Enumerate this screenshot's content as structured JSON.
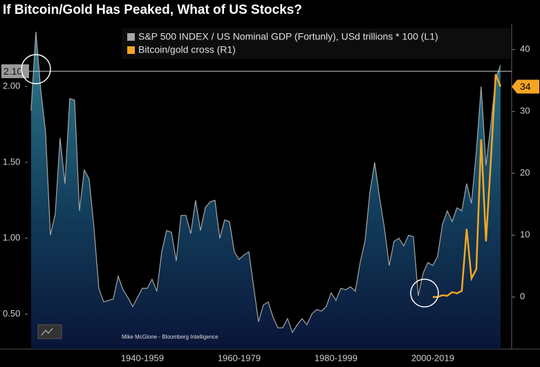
{
  "chart_data": {
    "type": "line",
    "title": "If Bitcoin/Gold Has Peaked, What of US Stocks?",
    "annotation": "Mike McGlone - Bloomberg Intelligence",
    "reference_line": {
      "value": 2.1,
      "label": "2.10"
    },
    "x": [
      1927,
      1928,
      1929,
      1930,
      1931,
      1932,
      1933,
      1934,
      1935,
      1936,
      1937,
      1938,
      1939,
      1940,
      1941,
      1942,
      1943,
      1944,
      1945,
      1946,
      1947,
      1948,
      1949,
      1950,
      1951,
      1952,
      1953,
      1954,
      1955,
      1956,
      1957,
      1958,
      1959,
      1960,
      1961,
      1962,
      1963,
      1964,
      1965,
      1966,
      1967,
      1968,
      1969,
      1970,
      1971,
      1972,
      1973,
      1974,
      1975,
      1976,
      1977,
      1978,
      1979,
      1980,
      1981,
      1982,
      1983,
      1984,
      1985,
      1986,
      1987,
      1988,
      1989,
      1990,
      1991,
      1992,
      1993,
      1994,
      1995,
      1996,
      1997,
      1998,
      1999,
      2000,
      2001,
      2002,
      2003,
      2004,
      2005,
      2006,
      2007,
      2008,
      2009,
      2010,
      2011,
      2012,
      2013,
      2014,
      2015,
      2016,
      2017,
      2018,
      2019,
      2020,
      2021,
      2022,
      2023,
      2024
    ],
    "series": [
      {
        "name": "S&P 500 INDEX / US Nominal GDP (Fortunly), USd trillions * 100 (L1)",
        "color": "#a6a6a6",
        "values": [
          1.84,
          2.36,
          1.98,
          1.7,
          1.02,
          1.16,
          1.66,
          1.36,
          1.92,
          1.91,
          1.18,
          1.45,
          1.39,
          1.07,
          0.67,
          0.58,
          0.59,
          0.6,
          0.75,
          0.66,
          0.61,
          0.55,
          0.61,
          0.67,
          0.67,
          0.73,
          0.65,
          0.91,
          1.05,
          1.04,
          0.85,
          1.15,
          1.15,
          1.03,
          1.25,
          1.05,
          1.2,
          1.24,
          1.25,
          1.0,
          1.12,
          1.11,
          0.91,
          0.86,
          0.89,
          0.91,
          0.68,
          0.45,
          0.56,
          0.58,
          0.48,
          0.41,
          0.41,
          0.47,
          0.38,
          0.43,
          0.47,
          0.43,
          0.5,
          0.53,
          0.52,
          0.55,
          0.64,
          0.59,
          0.67,
          0.66,
          0.68,
          0.65,
          0.84,
          0.98,
          1.3,
          1.5,
          1.27,
          1.07,
          0.82,
          0.98,
          1.0,
          0.95,
          1.02,
          1.01,
          0.62,
          0.77,
          0.84,
          0.82,
          0.88,
          1.09,
          1.18,
          1.11,
          1.2,
          1.18,
          1.36,
          1.23,
          1.57,
          2.0,
          1.48,
          1.75,
          2.05,
          2.14
        ]
      },
      {
        "name": "Bitcoin/gold cross (R1)",
        "color": "#f5a623",
        "axis": "y2",
        "x": [
          2010,
          2011,
          2012,
          2013,
          2014,
          2015,
          2016,
          2017,
          2018,
          2019,
          2020,
          2021,
          2022,
          2023,
          2024
        ],
        "values": [
          0,
          0,
          0.3,
          0.2,
          0.8,
          0.6,
          1.0,
          11,
          3,
          4.5,
          25.5,
          9,
          22,
          36,
          34
        ]
      }
    ],
    "xlim": [
      1926.3,
      2026.3
    ],
    "xticks": [
      {
        "value": 1950,
        "label": "1940-1959"
      },
      {
        "value": 1970,
        "label": "1960-1979"
      },
      {
        "value": 1990,
        "label": "1980-1999"
      },
      {
        "value": 2010,
        "label": "2000-2019"
      }
    ],
    "ylim": [
      0.27,
      2.41
    ],
    "yticks": [
      {
        "value": 0.5,
        "label": "0.50"
      },
      {
        "value": 1,
        "label": "1.00"
      },
      {
        "value": 1.5,
        "label": "1.50"
      },
      {
        "value": 2,
        "label": "2.00"
      }
    ],
    "y2lim": [
      -8.4,
      44.1
    ],
    "y2ticks": [
      0,
      10,
      20,
      30,
      40
    ]
  }
}
